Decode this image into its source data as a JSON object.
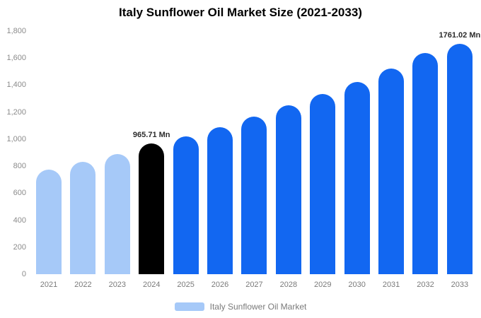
{
  "title": "Italy Sunflower Oil Market Size (2021-2033)",
  "colors": {
    "light": "#a6c9f8",
    "dark": "#000000",
    "blue": "#1267f1",
    "annotation": "#2b2b2b"
  },
  "legend": {
    "label": "Italy Sunflower Oil Market",
    "swatch_color": "#a6c9f8"
  },
  "chart_data": {
    "type": "bar",
    "title": "Italy Sunflower Oil Market Size (2021-2033)",
    "xlabel": "",
    "ylabel": "",
    "ylim": [
      0,
      1800
    ],
    "grid": false,
    "legend_position": "bottom",
    "categories": [
      "2021",
      "2022",
      "2023",
      "2024",
      "2025",
      "2026",
      "2027",
      "2028",
      "2029",
      "2030",
      "2031",
      "2032",
      "2033"
    ],
    "values": [
      775,
      830,
      890,
      965.71,
      1020,
      1090,
      1165,
      1250,
      1335,
      1425,
      1525,
      1640,
      1761.02
    ],
    "bar_styles": [
      "light",
      "light",
      "light",
      "dark",
      "blue",
      "blue",
      "blue",
      "blue",
      "blue",
      "blue",
      "blue",
      "blue",
      "blue"
    ],
    "annotations": [
      {
        "index": 3,
        "text": "965.71 Mn"
      },
      {
        "index": 12,
        "text": "1761.02 Mn"
      }
    ],
    "y_ticks": [
      {
        "label": "0",
        "value": 0
      },
      {
        "label": "200",
        "value": 200
      },
      {
        "label": "400",
        "value": 400
      },
      {
        "label": "600",
        "value": 600
      },
      {
        "label": "800",
        "value": 800
      },
      {
        "label": "1,000",
        "value": 1000
      },
      {
        "label": "1,200",
        "value": 1200
      },
      {
        "label": "1,400",
        "value": 1400
      },
      {
        "label": "1,600",
        "value": 1600
      },
      {
        "label": "1,800",
        "value": 1800
      }
    ]
  }
}
